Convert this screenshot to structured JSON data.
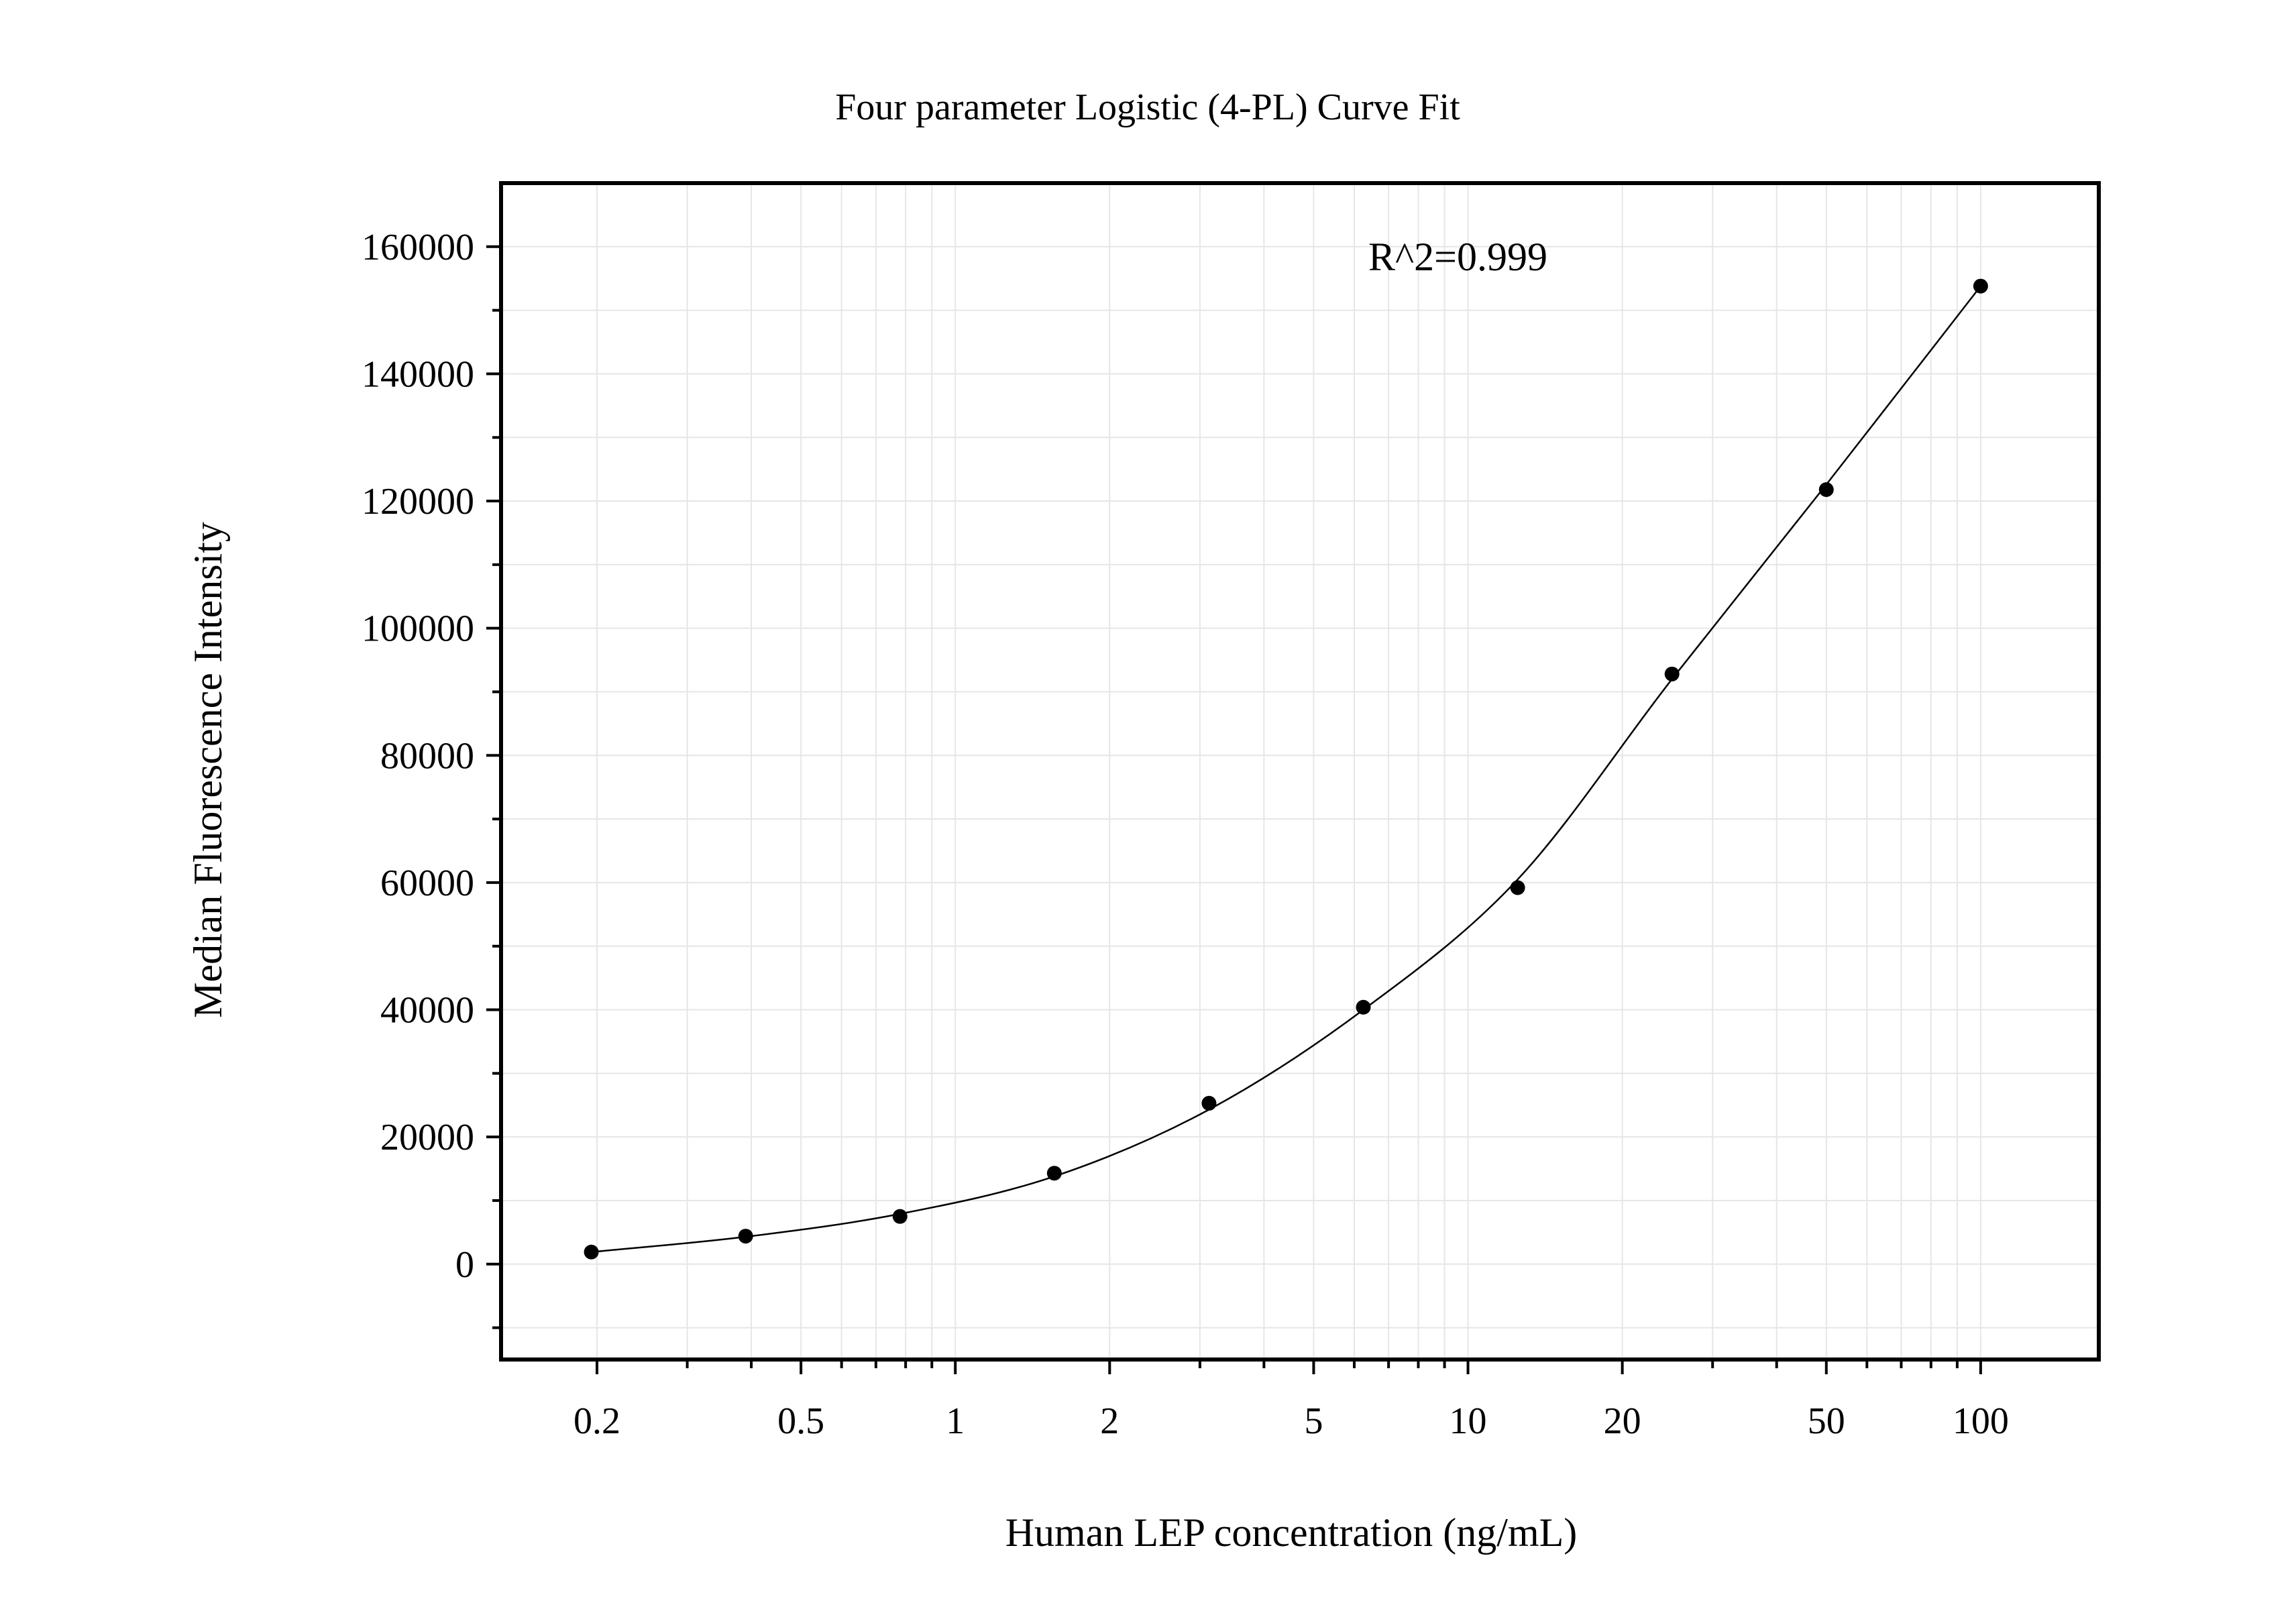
{
  "chart_data": {
    "type": "scatter",
    "title": "Four parameter Logistic (4-PL) Curve Fit",
    "xlabel": "Human LEP concentration (ng/mL)",
    "ylabel": "Median Fluorescence Intensity",
    "annotation": "R^2=0.999",
    "x_scale": "log",
    "xlim": [
      0.13,
      170
    ],
    "ylim": [
      -15000,
      170000
    ],
    "x_ticks": [
      0.2,
      0.5,
      1,
      2,
      5,
      10,
      20,
      50,
      100
    ],
    "x_tick_labels": [
      "0.2",
      "0.5",
      "1",
      "2",
      "5",
      "10",
      "20",
      "50",
      "100"
    ],
    "y_ticks": [
      0,
      20000,
      40000,
      60000,
      80000,
      100000,
      120000,
      140000,
      160000
    ],
    "y_tick_labels": [
      "0",
      "20000",
      "40000",
      "60000",
      "80000",
      "100000",
      "120000",
      "140000",
      "160000"
    ],
    "grid": true,
    "series": [
      {
        "x": [
          0.195,
          0.39,
          0.78,
          1.56,
          3.125,
          6.25,
          12.5,
          25,
          50,
          100
        ],
        "y": [
          1900,
          4400,
          7500,
          14300,
          25300,
          40400,
          59200,
          92800,
          121800,
          153800
        ]
      }
    ],
    "fit_curve": {
      "x": [
        0.195,
        0.39,
        0.78,
        1.56,
        3.125,
        6.25,
        12.5,
        25,
        50,
        100
      ],
      "y": [
        1900,
        4300,
        7900,
        13800,
        24300,
        40000,
        60500,
        92000,
        122600,
        153800
      ]
    },
    "colors": {
      "points": "#000000",
      "curve": "#000000",
      "grid": "#e6e6e6",
      "frame": "#000000"
    }
  }
}
